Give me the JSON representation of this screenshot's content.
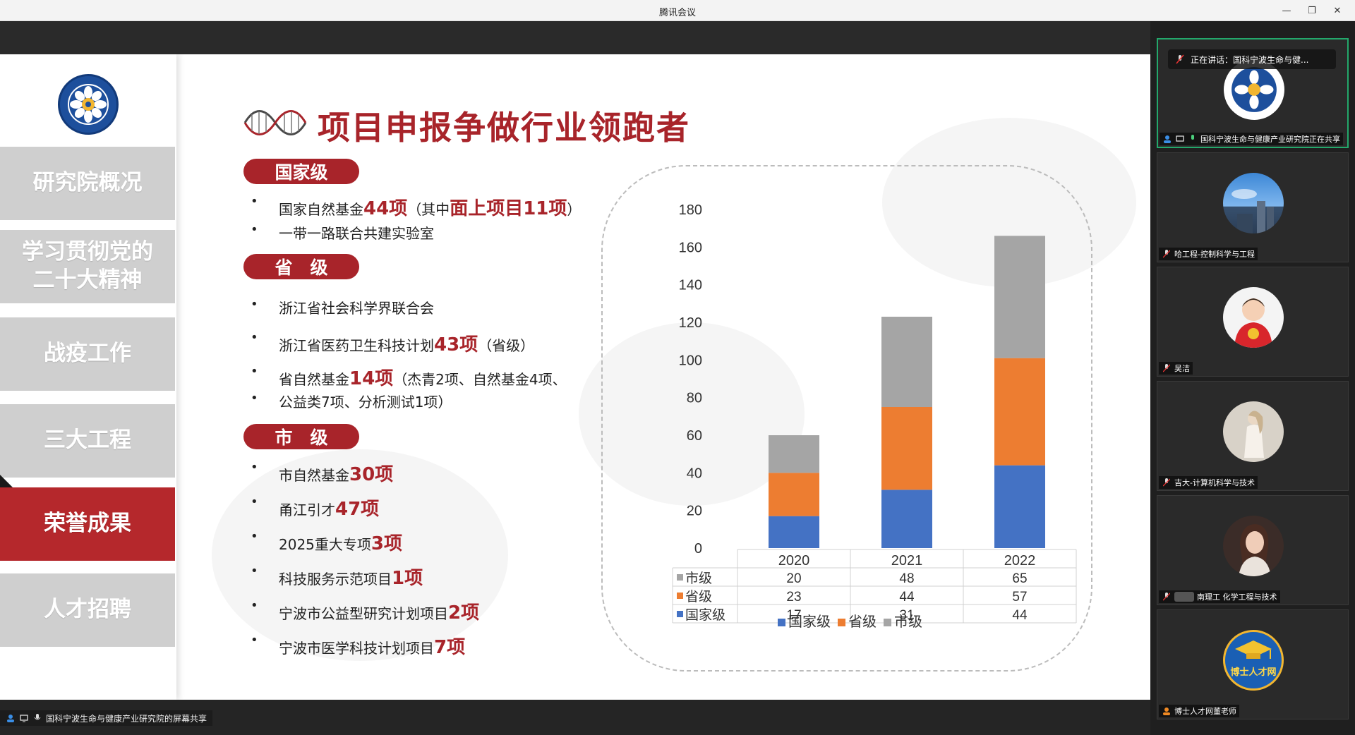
{
  "window": {
    "title": "腾讯会议",
    "minimize": "—",
    "restore": "❐",
    "close": "✕"
  },
  "slide": {
    "menu": [
      "研究院概况",
      "学习贯彻党的\n二十大精神",
      "战疫工作",
      "三大工程",
      "荣誉成果",
      "人才招聘"
    ],
    "headline": "项目申报争做行业领跑者",
    "sections": {
      "national": {
        "label": "国家级",
        "i1_a": "国家自然基金",
        "i1_b": "44项",
        "i1_c": "（其中",
        "i1_d": "面上项目11项",
        "i1_e": "）",
        "i2": "一带一路联合共建实验室"
      },
      "provincial": {
        "label": "省　级",
        "i1": "浙江省社会科学界联合会",
        "i2_a": "浙江省医药卫生科技计划",
        "i2_b": "43项",
        "i2_c": "（省级）",
        "i3_a": "省自然基金",
        "i3_b": "14项",
        "i3_c": "（杰青2项、自然基金4项、",
        "i3_d": "公益类7项、分析测试1项）"
      },
      "city": {
        "label": "市　级",
        "i1_a": "市自然基金",
        "i1_b": "30项",
        "i2_a": "甬江引才",
        "i2_b": "47项",
        "i3_a": "2025重大专项",
        "i3_b": "3项",
        "i4_a": "科技服务示范项目",
        "i4_b": "1项",
        "i5_a": "宁波市公益型研究计划项目",
        "i5_b": "2项",
        "i6_a": "宁波市医学科技计划项目",
        "i6_b": "7项"
      }
    }
  },
  "chart_data": {
    "type": "bar",
    "stacked": true,
    "categories": [
      "2020",
      "2021",
      "2022"
    ],
    "series": [
      {
        "name": "国家级",
        "values": [
          17,
          31,
          44
        ],
        "color": "#4472c4"
      },
      {
        "name": "省级",
        "values": [
          23,
          44,
          57
        ],
        "color": "#ed7d31"
      },
      {
        "name": "市级",
        "values": [
          20,
          48,
          65
        ],
        "color": "#a5a5a5"
      }
    ],
    "ylim": [
      0,
      180
    ],
    "yticks": [
      0,
      20,
      40,
      60,
      80,
      100,
      120,
      140,
      160,
      180
    ],
    "data_table": true,
    "legend_position": "bottom"
  },
  "share_label": "国科宁波生命与健康产业研究院的屏幕共享",
  "participants": [
    {
      "name": "国科宁波生命与健康产业研究院正在共享",
      "speaking_banner": "正在讲话：国科宁波生命与健..."
    },
    {
      "name": "哈工程-控制科学与工程"
    },
    {
      "name": "吴洁"
    },
    {
      "name": "吉大-计算机科学与技术"
    },
    {
      "name": "南理工 化学工程与技术"
    },
    {
      "name": "博士人才网董老师",
      "avatar_text": "博士人才网"
    }
  ],
  "colors": {
    "brand_red": "#a8242a",
    "menu_gray": "#cfcfcf",
    "speaking_green": "#23a86b"
  }
}
